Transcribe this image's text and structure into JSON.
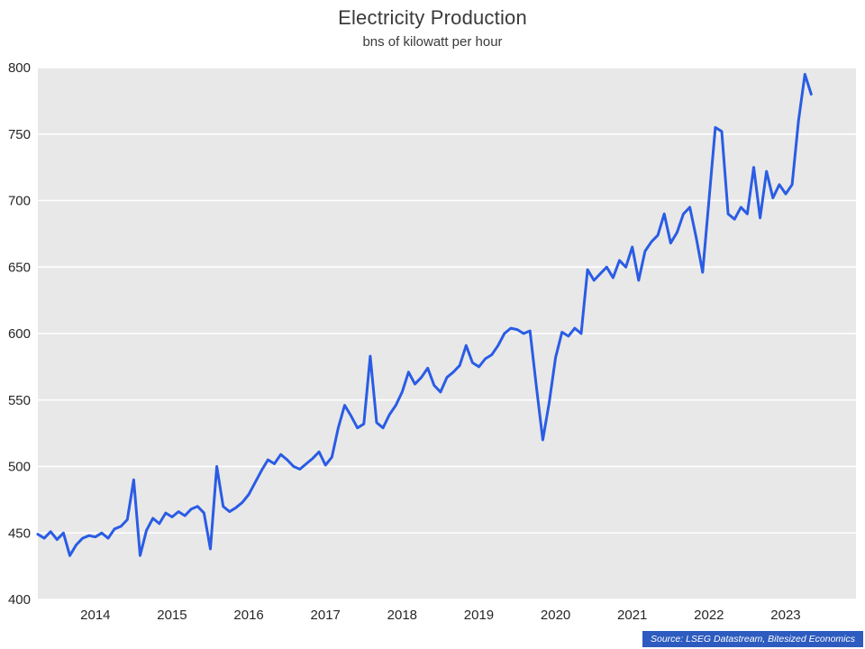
{
  "header": {
    "title": "Electricity Production",
    "subtitle": "bns of kilowatt per hour"
  },
  "footer": {
    "source": "Source: LSEG Datastream, Bitesized Economics"
  },
  "colors": {
    "line": "#2a5ce4",
    "plot_bg": "#e8e8e8",
    "grid": "#ffffff",
    "axis_text": "#262626",
    "source_bg": "#2d5bbf"
  },
  "chart_data": {
    "type": "line",
    "title": "Electricity Production",
    "subtitle": "bns of kilowatt per hour",
    "series_name": "Electricity production (bns of kilowatt per hour)",
    "xlabel": "",
    "ylabel": "",
    "ylim": [
      400,
      800
    ],
    "y_ticks": [
      400,
      450,
      500,
      550,
      600,
      650,
      700,
      750,
      800
    ],
    "x_tick_labels": [
      "2014",
      "2015",
      "2016",
      "2017",
      "2018",
      "2019",
      "2020",
      "2021",
      "2022",
      "2023"
    ],
    "grid": "horizontal-only",
    "legend": "none",
    "x_axis_pad_points": 7,
    "x": [
      "2013-04",
      "2013-05",
      "2013-06",
      "2013-07",
      "2013-08",
      "2013-09",
      "2013-10",
      "2013-11",
      "2013-12",
      "2014-01",
      "2014-02",
      "2014-03",
      "2014-04",
      "2014-05",
      "2014-06",
      "2014-07",
      "2014-08",
      "2014-09",
      "2014-10",
      "2014-11",
      "2014-12",
      "2015-01",
      "2015-02",
      "2015-03",
      "2015-04",
      "2015-05",
      "2015-06",
      "2015-07",
      "2015-08",
      "2015-09",
      "2015-10",
      "2015-11",
      "2015-12",
      "2016-01",
      "2016-02",
      "2016-03",
      "2016-04",
      "2016-05",
      "2016-06",
      "2016-07",
      "2016-08",
      "2016-09",
      "2016-10",
      "2016-11",
      "2016-12",
      "2017-01",
      "2017-02",
      "2017-03",
      "2017-04",
      "2017-05",
      "2017-06",
      "2017-07",
      "2017-08",
      "2017-09",
      "2017-10",
      "2017-11",
      "2017-12",
      "2018-01",
      "2018-02",
      "2018-03",
      "2018-04",
      "2018-05",
      "2018-06",
      "2018-07",
      "2018-08",
      "2018-09",
      "2018-10",
      "2018-11",
      "2018-12",
      "2019-01",
      "2019-02",
      "2019-03",
      "2019-04",
      "2019-05",
      "2019-06",
      "2019-07",
      "2019-08",
      "2019-09",
      "2019-10",
      "2019-11",
      "2019-12",
      "2020-01",
      "2020-02",
      "2020-03",
      "2020-04",
      "2020-05",
      "2020-06",
      "2020-07",
      "2020-08",
      "2020-09",
      "2020-10",
      "2020-11",
      "2020-12",
      "2021-01",
      "2021-02",
      "2021-03",
      "2021-04",
      "2021-05",
      "2021-06",
      "2021-07",
      "2021-08",
      "2021-09",
      "2021-10",
      "2021-11",
      "2021-12",
      "2022-01",
      "2022-02",
      "2022-03",
      "2022-04",
      "2022-05",
      "2022-06",
      "2022-07",
      "2022-08",
      "2022-09",
      "2022-10",
      "2022-11",
      "2022-12",
      "2023-01",
      "2023-02",
      "2023-03",
      "2023-04",
      "2023-05"
    ],
    "values": [
      449,
      446,
      451,
      445,
      450,
      433,
      441,
      446,
      448,
      447,
      450,
      446,
      453,
      455,
      460,
      490,
      433,
      452,
      461,
      457,
      465,
      462,
      466,
      463,
      468,
      470,
      465,
      438,
      500,
      470,
      466,
      469,
      473,
      479,
      488,
      497,
      505,
      502,
      509,
      505,
      500,
      498,
      502,
      506,
      511,
      501,
      507,
      529,
      546,
      538,
      529,
      532,
      583,
      533,
      529,
      539,
      546,
      556,
      571,
      562,
      567,
      574,
      561,
      556,
      567,
      571,
      576,
      591,
      578,
      575,
      581,
      584,
      591,
      600,
      604,
      603,
      600,
      602,
      560,
      520,
      548,
      582,
      601,
      598,
      604,
      600,
      648,
      640,
      645,
      650,
      642,
      655,
      650,
      665,
      640,
      662,
      669,
      674,
      690,
      668,
      676,
      690,
      695,
      672,
      646,
      700,
      755,
      752,
      690,
      686,
      695,
      690,
      725,
      687,
      722,
      702,
      712,
      705,
      712,
      760,
      795,
      780
    ]
  }
}
